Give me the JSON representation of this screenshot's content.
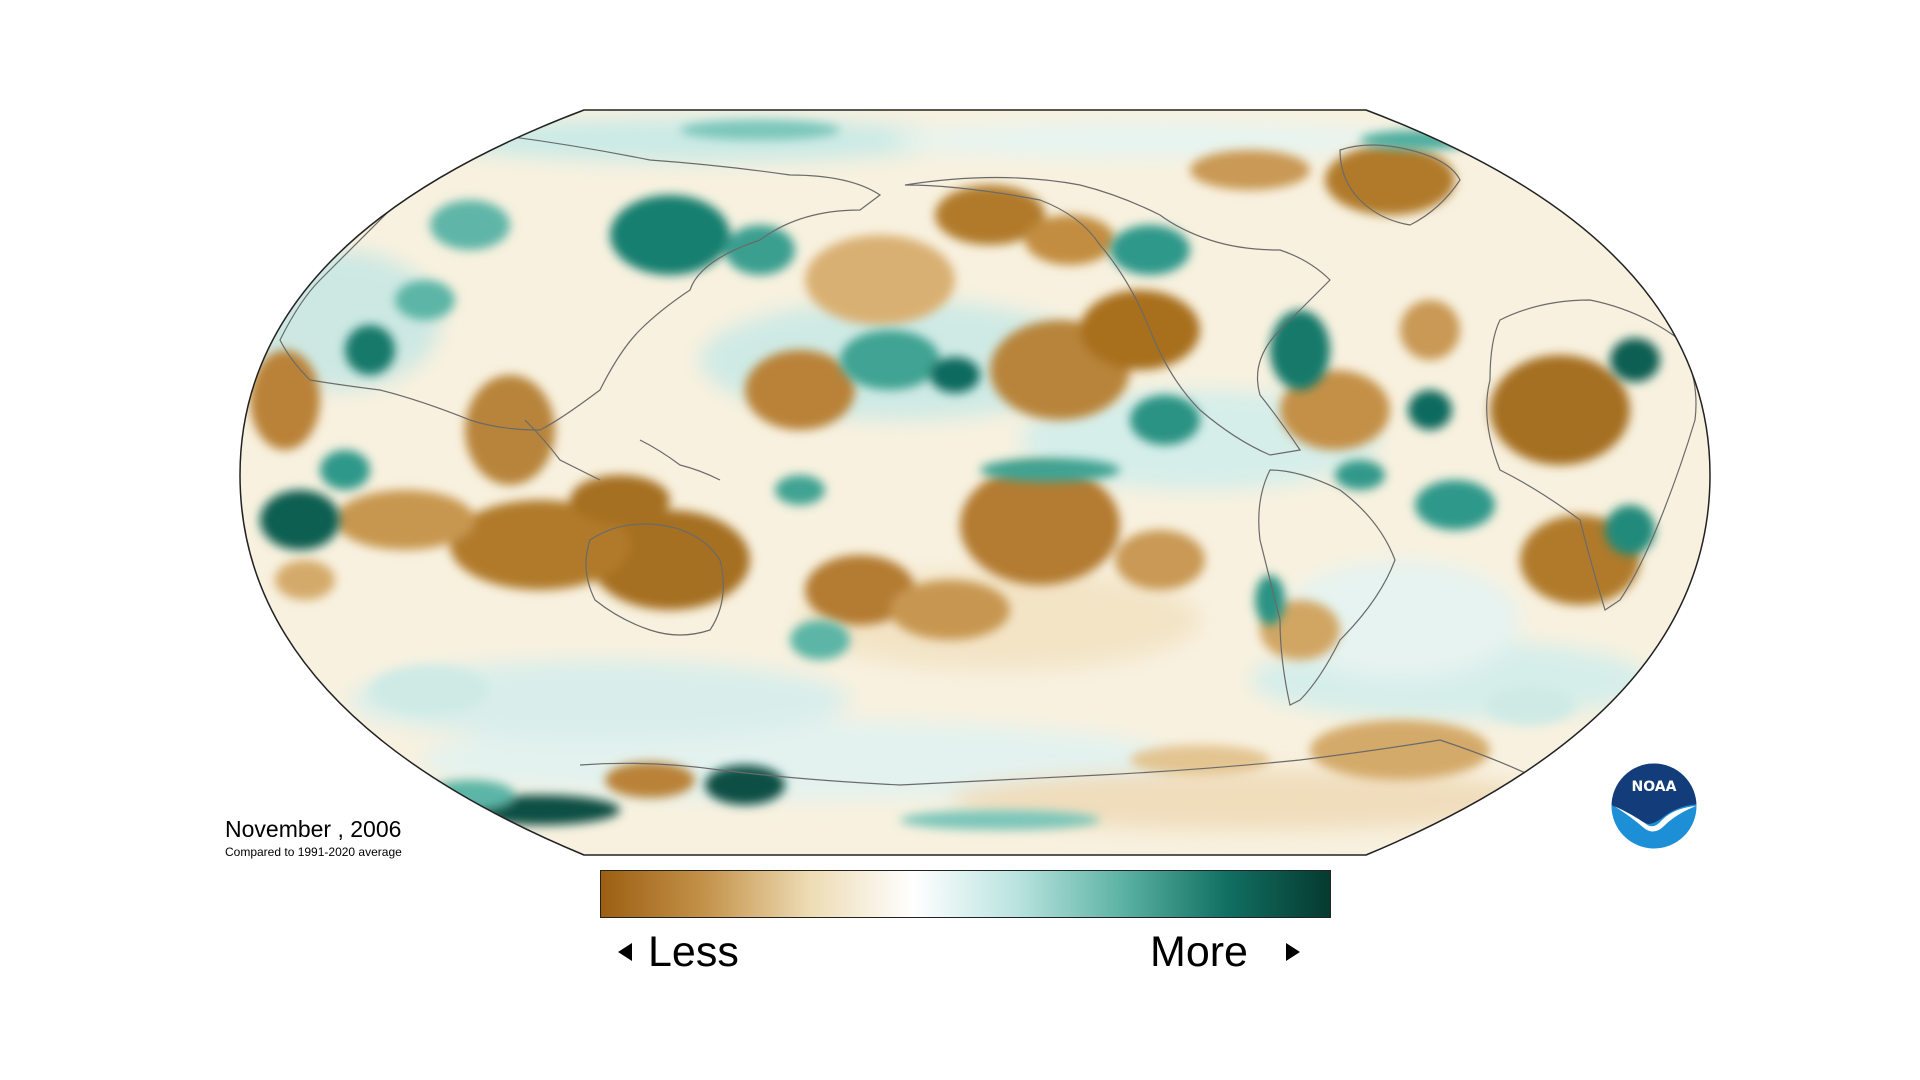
{
  "caption": {
    "period": "November , 2006",
    "baseline": "Compared to 1991-2020 average"
  },
  "legend": {
    "low_label": "Less",
    "high_label": "More",
    "colors": [
      "#9c5f12",
      "#c4924a",
      "#eddcb4",
      "#ffffff",
      "#b9e3df",
      "#5cb3a4",
      "#117062",
      "#063a30"
    ]
  },
  "logo": {
    "text": "NOAA",
    "colors": {
      "top": "#123c7a",
      "bottom": "#1d8fd6"
    }
  },
  "map": {
    "projection": "robinson",
    "center_longitude": "Pacific",
    "anomaly_palette": {
      "less": "#a5671b",
      "less_light": "#dfbd85",
      "neutral": "#fbf6ea",
      "more_light": "#a6dcd5",
      "more": "#138273",
      "much_more": "#04473b"
    }
  }
}
